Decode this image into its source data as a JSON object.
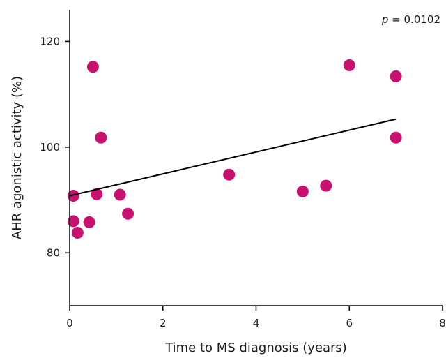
{
  "chart_data": {
    "type": "scatter",
    "xlabel": "Time to MS diagnosis (years)",
    "ylabel": "AHR agonistic activity (%)",
    "xlim": [
      0,
      8
    ],
    "ylim": [
      70,
      126
    ],
    "xticks": [
      0,
      2,
      4,
      6,
      8
    ],
    "yticks": [
      80,
      100,
      120
    ],
    "grid": false,
    "points": [
      {
        "x": 0.08,
        "y": 90.8
      },
      {
        "x": 0.08,
        "y": 86.0
      },
      {
        "x": 0.17,
        "y": 83.8
      },
      {
        "x": 0.42,
        "y": 85.8
      },
      {
        "x": 0.5,
        "y": 115.2
      },
      {
        "x": 0.58,
        "y": 91.1
      },
      {
        "x": 0.67,
        "y": 101.8
      },
      {
        "x": 1.08,
        "y": 91.0
      },
      {
        "x": 1.25,
        "y": 87.4
      },
      {
        "x": 3.42,
        "y": 94.8
      },
      {
        "x": 5.0,
        "y": 91.6
      },
      {
        "x": 5.5,
        "y": 92.7
      },
      {
        "x": 6.0,
        "y": 115.5
      },
      {
        "x": 7.0,
        "y": 113.4
      },
      {
        "x": 7.0,
        "y": 101.8
      }
    ],
    "trendline": {
      "x": [
        0.0,
        7.0
      ],
      "y": [
        90.8,
        105.3
      ]
    },
    "annotation": {
      "p_symbol": "p",
      "text": " = 0.0102"
    },
    "colors": {
      "marker": "#c8106e",
      "line": "#000000"
    }
  }
}
